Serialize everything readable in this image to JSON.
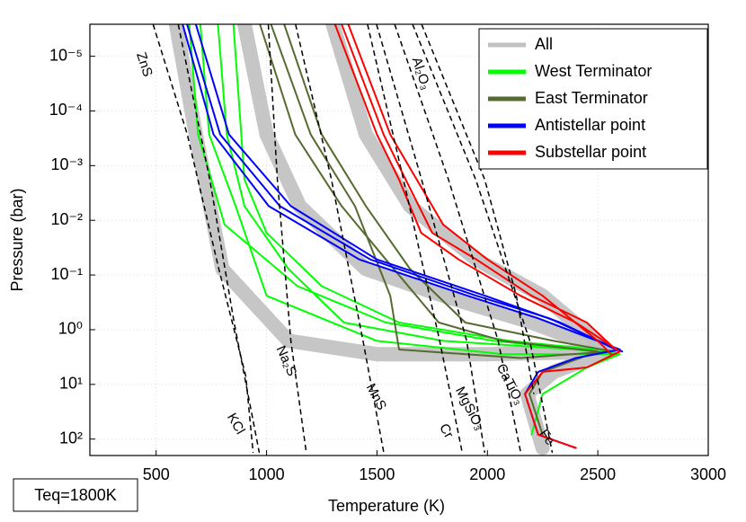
{
  "chart_data": {
    "type": "profiles",
    "x_label": "Temperature (K)",
    "y_label": "Pressure (bar)",
    "annotation": "Teq=1800K",
    "xlim": [
      200,
      3000
    ],
    "xticks": [
      500,
      1000,
      1500,
      2000,
      2500,
      3000
    ],
    "ylim": [
      2.6e-06,
      200
    ],
    "y_log": true,
    "y_inverted": true,
    "yticks": [
      {
        "value": 1e-05,
        "label": "10⁻⁵"
      },
      {
        "value": 0.0001,
        "label": "10⁻⁴"
      },
      {
        "value": 0.001,
        "label": "10⁻³"
      },
      {
        "value": 0.01,
        "label": "10⁻²"
      },
      {
        "value": 0.1,
        "label": "10⁻¹"
      },
      {
        "value": 1,
        "label": "10⁰"
      },
      {
        "value": 10,
        "label": "10¹"
      },
      {
        "value": 100,
        "label": "10²"
      }
    ],
    "grid": true,
    "legend": "upper right",
    "series": [
      {
        "name": "All",
        "color": "#c0c0c0",
        "profiles": [
          {
            "x": [
              590,
              680,
              800,
              1100,
              1500,
              2000,
              2550,
              2300,
              2180,
              2250
            ],
            "y": [
              2.6e-06,
              0.00027,
              0.078,
              1.6,
              2.8,
              2.8,
              2.5,
              5.9,
              15,
              145
            ]
          },
          {
            "x": [
              900,
              1000,
              1150,
              1450,
              1800,
              2200,
              2550
            ],
            "y": [
              2.6e-06,
              0.00027,
              0.0055,
              0.078,
              0.24,
              0.74,
              2.5
            ]
          },
          {
            "x": [
              1300,
              1450,
              1650,
              1950,
              2250,
              2550
            ],
            "y": [
              2.6e-06,
              0.00027,
              0.0055,
              0.052,
              0.24,
              2.5
            ]
          }
        ]
      },
      {
        "name": "West Terminator",
        "color": "#00ff00",
        "profiles": [
          {
            "x": [
              650,
              690,
              810,
              1140,
              1540,
              2030,
              2600,
              2450,
              2250,
              2200
            ],
            "y": [
              2.6e-06,
              0.00027,
              0.012,
              0.16,
              0.74,
              1.6,
              2.8,
              4.9,
              15,
              83
            ]
          },
          {
            "x": [
              700,
              740,
              860,
              1000,
              1500,
              2070,
              2580
            ],
            "y": [
              2.6e-06,
              0.00027,
              0.0055,
              0.24,
              1.6,
              2.8,
              2.8
            ]
          },
          {
            "x": [
              780,
              820,
              900,
              1100,
              1350,
              1800,
              2400,
              2590
            ],
            "y": [
              2.6e-06,
              0.00027,
              0.0055,
              0.078,
              0.74,
              1.6,
              2.3,
              2.8
            ]
          },
          {
            "x": [
              850,
              900,
              1000,
              1250,
              1600,
              2100,
              2580
            ],
            "y": [
              2.6e-06,
              0.0018,
              0.017,
              0.16,
              0.74,
              1.6,
              2.5
            ]
          }
        ]
      },
      {
        "name": "East Terminator",
        "color": "#556b2f",
        "profiles": [
          {
            "x": [
              970,
              1130,
              1340,
              1540,
              1780,
              2070,
              2500,
              2250,
              2190,
              2250
            ],
            "y": [
              2.6e-06,
              0.00027,
              0.0055,
              0.052,
              0.74,
              1.6,
              2.5,
              5.9,
              15,
              83
            ]
          },
          {
            "x": [
              1020,
              1200,
              1400,
              1560,
              1600,
              2150,
              2550
            ],
            "y": [
              2.6e-06,
              0.00027,
              0.0055,
              0.24,
              2.3,
              3.3,
              2.5
            ]
          },
          {
            "x": [
              1080,
              1250,
              1450,
              1650,
              1900,
              2300,
              2570
            ],
            "y": [
              2.6e-06,
              0.00027,
              0.0055,
              0.078,
              0.74,
              1.6,
              2.5
            ]
          }
        ]
      },
      {
        "name": "Antistellar point",
        "color": "#0000ff",
        "profiles": [
          {
            "x": [
              620,
              760,
              1010,
              1420,
              1910,
              2230,
              2600,
              2400,
              2230,
              2170,
              2230,
              2400
            ],
            "y": [
              2.6e-06,
              0.00027,
              0.0055,
              0.052,
              0.24,
              0.62,
              2.3,
              3.3,
              5.9,
              15,
              83,
              145
            ]
          },
          {
            "x": [
              640,
              790,
              1060,
              1470,
              1950,
              2280,
              2610
            ],
            "y": [
              2.6e-06,
              0.00027,
              0.0055,
              0.052,
              0.24,
              0.62,
              2.5
            ]
          },
          {
            "x": [
              680,
              830,
              1110,
              1500,
              1990,
              2330,
              2600
            ],
            "y": [
              2.6e-06,
              0.00027,
              0.0055,
              0.052,
              0.24,
              0.74,
              2.5
            ]
          }
        ]
      },
      {
        "name": "Substellar point",
        "color": "#ff0000",
        "profiles": [
          {
            "x": [
              1310,
              1500,
              1600,
              1700,
              1870,
              2150,
              2400,
              2600,
              2450,
              2250,
              2170,
              2230,
              2400
            ],
            "y": [
              2.6e-06,
              0.00027,
              0.0018,
              0.017,
              0.052,
              0.24,
              0.74,
              2.5,
              4.9,
              5.9,
              15,
              83,
              145
            ]
          },
          {
            "x": [
              1340,
              1530,
              1630,
              1750,
              1950,
              2200,
              2450,
              2580
            ],
            "y": [
              2.6e-06,
              0.00027,
              0.0018,
              0.017,
              0.052,
              0.24,
              0.74,
              2.3
            ]
          },
          {
            "x": [
              1370,
              1560,
              1680,
              1800,
              2000,
              2250,
              2500,
              2560
            ],
            "y": [
              2.6e-06,
              0.00027,
              0.0018,
              0.012,
              0.052,
              0.24,
              1.6,
              2.8
            ]
          }
        ]
      }
    ],
    "condensation_curves": [
      {
        "label": "ZnS",
        "x": [
          486,
          641,
          784,
          906,
          939
        ],
        "y": [
          2.6e-06,
          0.00027,
          0.078,
          7.1,
          178
        ]
      },
      {
        "label": "KCl",
        "x": [
          600,
          743,
          853,
          967
        ],
        "y": [
          2.6e-06,
          0.0018,
          0.74,
          178
        ]
      },
      {
        "label": "Na₂S",
        "x": [
          1008,
          1049,
          1110,
          1180
        ],
        "y": [
          2.6e-06,
          0.0018,
          1.6,
          178
        ]
      },
      {
        "label": "MnS",
        "x": [
          1131,
          1294,
          1437,
          1531
        ],
        "y": [
          2.6e-06,
          0.0018,
          1.6,
          178
        ]
      },
      {
        "label": "Cr",
        "x": [
          1457,
          1620,
          1784,
          1886
        ],
        "y": [
          2.6e-06,
          0.0018,
          1.6,
          178
        ]
      },
      {
        "label": "MgSiO₃",
        "x": [
          1498,
          1702,
          1906,
          1988
        ],
        "y": [
          2.6e-06,
          0.0018,
          1.6,
          178
        ]
      },
      {
        "label": "CaTiO₃",
        "x": [
          1580,
          1824,
          2049,
          2151
        ],
        "y": [
          2.6e-06,
          0.0018,
          1.6,
          178
        ]
      },
      {
        "label": "Fe",
        "x": [
          1661,
          1947,
          2192,
          2294
        ],
        "y": [
          2.6e-06,
          0.0018,
          1.6,
          178
        ]
      },
      {
        "label": "Al₂O₃",
        "x": [
          1702,
          1988,
          2131,
          2210
        ],
        "y": [
          2.6e-06,
          0.0018,
          0.24,
          15
        ]
      }
    ]
  }
}
